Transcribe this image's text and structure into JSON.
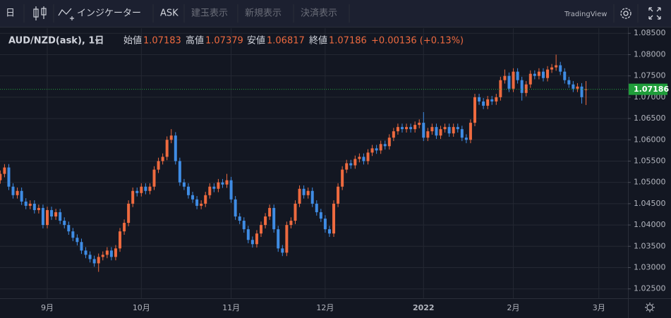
{
  "toolbar": {
    "items": [
      "日",
      "インジケーター",
      "ASK",
      "建玉表示",
      "新規表示",
      "決済表示"
    ],
    "brand": "TradingView"
  },
  "chart_data": {
    "type": "candlestick",
    "symbol": "AUD/NZD(ask), 1日",
    "ohlc_labels": [
      "始値",
      "高値",
      "安値",
      "終値"
    ],
    "change": "+0.00136 (+0.13%)",
    "up_color": "#ee6a3f",
    "down_color": "#3f8ce4",
    "grid": true,
    "categories": [
      null,
      null,
      null,
      null,
      null,
      null,
      null,
      null,
      null,
      null,
      null,
      "9月",
      null,
      null,
      null,
      null,
      null,
      null,
      null,
      null,
      null,
      null,
      null,
      null,
      null,
      null,
      null,
      null,
      null,
      null,
      null,
      null,
      null,
      "10月",
      null,
      null,
      null,
      null,
      null,
      null,
      null,
      null,
      null,
      null,
      null,
      null,
      null,
      null,
      null,
      null,
      null,
      null,
      null,
      null,
      "11月",
      null,
      null,
      null,
      null,
      null,
      null,
      null,
      null,
      null,
      null,
      null,
      null,
      null,
      null,
      null,
      null,
      null,
      null,
      null,
      null,
      null,
      "12月",
      null,
      null,
      null,
      null,
      null,
      null,
      null,
      null,
      null,
      null,
      null,
      null,
      null,
      null,
      null,
      null,
      null,
      null,
      null,
      null,
      null,
      null,
      "2022",
      null,
      null,
      null,
      null,
      null,
      null,
      null,
      null,
      null,
      null,
      null,
      null,
      null,
      null,
      null,
      null,
      null,
      null,
      null,
      null,
      "2月",
      null,
      null,
      null,
      null,
      null,
      null,
      null,
      null,
      null,
      null,
      null,
      null,
      null,
      null,
      null,
      null,
      null,
      null,
      null,
      "3月"
    ],
    "open": [
      1.0505,
      1.052,
      1.0535,
      1.049,
      1.047,
      1.048,
      1.0455,
      1.0445,
      1.045,
      1.0435,
      1.044,
      1.04,
      1.0435,
      1.042,
      1.043,
      1.041,
      1.04,
      1.0385,
      1.037,
      1.036,
      1.034,
      1.033,
      1.032,
      1.031,
      1.0325,
      1.033,
      1.034,
      1.0325,
      1.0345,
      1.0385,
      1.0405,
      1.045,
      1.048,
      1.0475,
      1.049,
      1.048,
      1.049,
      1.053,
      1.055,
      1.056,
      1.06,
      1.061,
      1.055,
      1.05,
      1.049,
      1.047,
      1.046,
      1.0445,
      1.045,
      1.047,
      1.049,
      1.0485,
      1.05,
      1.0495,
      1.0505,
      1.046,
      1.042,
      1.041,
      1.039,
      1.0365,
      1.0355,
      1.038,
      1.04,
      1.042,
      1.044,
      1.039,
      1.0345,
      1.0335,
      1.04,
      1.041,
      1.045,
      1.0485,
      1.047,
      1.048,
      1.045,
      1.043,
      1.0415,
      1.039,
      1.038,
      1.045,
      1.049,
      1.053,
      1.0545,
      1.054,
      1.0555,
      1.056,
      1.055,
      1.057,
      1.058,
      1.0575,
      1.059,
      1.0585,
      1.0605,
      1.062,
      1.063,
      1.0625,
      1.063,
      1.0625,
      1.0635,
      1.064,
      1.0605,
      1.062,
      1.063,
      1.061,
      1.0625,
      1.063,
      1.0615,
      1.063,
      1.0625,
      1.0605,
      1.06,
      1.064,
      1.07,
      1.069,
      1.068,
      1.0695,
      1.069,
      1.07,
      1.074,
      1.075,
      1.072,
      1.076,
      1.074,
      1.071,
      1.073,
      1.0755,
      1.075,
      1.076,
      1.0745,
      1.0765,
      1.077,
      1.0775,
      1.076,
      1.074,
      1.073,
      1.072,
      1.0725,
      1.07183,
      null,
      null,
      null
    ],
    "high": [
      1.0528,
      1.0543,
      1.0543,
      1.0498,
      1.0488,
      1.0488,
      1.0463,
      1.0458,
      1.0458,
      1.0448,
      1.0448,
      1.0443,
      1.0443,
      1.0438,
      1.0438,
      1.0418,
      1.0408,
      1.0393,
      1.0378,
      1.0368,
      1.0348,
      1.0338,
      1.0328,
      1.0333,
      1.0338,
      1.0348,
      1.0348,
      1.0353,
      1.0393,
      1.0413,
      1.0458,
      1.0488,
      1.0488,
      1.0498,
      1.0498,
      1.0498,
      1.0538,
      1.0558,
      1.0568,
      1.0608,
      1.0625,
      1.0618,
      1.0558,
      1.0508,
      1.0498,
      1.0478,
      1.0468,
      1.0458,
      1.0478,
      1.0498,
      1.0498,
      1.0508,
      1.0508,
      1.052,
      1.0513,
      1.0468,
      1.0428,
      1.0418,
      1.0398,
      1.0373,
      1.0388,
      1.0408,
      1.0428,
      1.0448,
      1.0448,
      1.0398,
      1.0353,
      1.0408,
      1.0418,
      1.0458,
      1.0493,
      1.0493,
      1.0488,
      1.0488,
      1.0458,
      1.0438,
      1.0423,
      1.0398,
      1.0458,
      1.0498,
      1.0538,
      1.0553,
      1.0553,
      1.0563,
      1.0568,
      1.0568,
      1.0578,
      1.0588,
      1.0588,
      1.0598,
      1.0598,
      1.0613,
      1.0628,
      1.0638,
      1.0638,
      1.0638,
      1.0638,
      1.0643,
      1.0648,
      1.0665,
      1.0628,
      1.0638,
      1.0638,
      1.0633,
      1.0638,
      1.0638,
      1.0638,
      1.0638,
      1.0633,
      1.0613,
      1.0648,
      1.0708,
      1.0708,
      1.0698,
      1.0703,
      1.0703,
      1.0708,
      1.0748,
      1.0765,
      1.0758,
      1.0768,
      1.0768,
      1.0748,
      1.0738,
      1.0763,
      1.0763,
      1.0768,
      1.0768,
      1.0773,
      1.0778,
      1.08,
      1.0783,
      1.0768,
      1.0748,
      1.0738,
      1.0733,
      1.0733,
      1.07379,
      null,
      null,
      null
    ],
    "low": [
      1.0497,
      1.0512,
      1.0482,
      1.0462,
      1.0462,
      1.0447,
      1.0437,
      1.0437,
      1.0427,
      1.0427,
      1.0392,
      1.0392,
      1.0412,
      1.0412,
      1.0402,
      1.0392,
      1.0377,
      1.0362,
      1.0352,
      1.0332,
      1.0322,
      1.0312,
      1.0302,
      1.029,
      1.0317,
      1.0322,
      1.0317,
      1.0317,
      1.0337,
      1.0377,
      1.0397,
      1.0442,
      1.0467,
      1.0467,
      1.0472,
      1.0472,
      1.0482,
      1.0522,
      1.0542,
      1.0552,
      1.0592,
      1.0542,
      1.0492,
      1.0482,
      1.0462,
      1.0452,
      1.0437,
      1.0437,
      1.0442,
      1.0462,
      1.0477,
      1.0477,
      1.0487,
      1.0487,
      1.0452,
      1.0412,
      1.0402,
      1.0382,
      1.0357,
      1.0347,
      1.0347,
      1.0372,
      1.0392,
      1.0412,
      1.0382,
      1.0337,
      1.0327,
      1.0327,
      1.0392,
      1.0402,
      1.0442,
      1.0462,
      1.0462,
      1.0442,
      1.0422,
      1.0407,
      1.0382,
      1.0372,
      1.0372,
      1.0442,
      1.0482,
      1.0522,
      1.0532,
      1.0532,
      1.0547,
      1.0542,
      1.0542,
      1.0562,
      1.0567,
      1.0567,
      1.0577,
      1.0577,
      1.0597,
      1.0612,
      1.0617,
      1.0617,
      1.0617,
      1.0617,
      1.0627,
      1.0597,
      1.0597,
      1.0612,
      1.0602,
      1.0602,
      1.0617,
      1.0607,
      1.0607,
      1.0617,
      1.0597,
      1.0592,
      1.0592,
      1.0632,
      1.0682,
      1.0672,
      1.0672,
      1.0682,
      1.0682,
      1.0692,
      1.0732,
      1.0712,
      1.0712,
      1.0732,
      1.0692,
      1.0702,
      1.0722,
      1.0742,
      1.0742,
      1.0737,
      1.0737,
      1.0757,
      1.0762,
      1.0752,
      1.0732,
      1.0722,
      1.0712,
      1.0712,
      1.0685,
      1.06817,
      null,
      null,
      null
    ],
    "close": [
      1.052,
      1.0535,
      1.049,
      1.047,
      1.048,
      1.0455,
      1.0445,
      1.045,
      1.0435,
      1.044,
      1.04,
      1.0435,
      1.042,
      1.043,
      1.041,
      1.04,
      1.0385,
      1.037,
      1.036,
      1.034,
      1.033,
      1.032,
      1.031,
      1.0325,
      1.033,
      1.034,
      1.0325,
      1.0345,
      1.0385,
      1.0405,
      1.045,
      1.048,
      1.0475,
      1.049,
      1.048,
      1.049,
      1.053,
      1.055,
      1.056,
      1.06,
      1.061,
      1.055,
      1.05,
      1.049,
      1.047,
      1.046,
      1.0445,
      1.045,
      1.047,
      1.049,
      1.0485,
      1.05,
      1.0495,
      1.0505,
      1.046,
      1.042,
      1.041,
      1.039,
      1.0365,
      1.0355,
      1.038,
      1.04,
      1.042,
      1.044,
      1.039,
      1.0345,
      1.0335,
      1.04,
      1.041,
      1.045,
      1.0485,
      1.047,
      1.048,
      1.045,
      1.043,
      1.0415,
      1.039,
      1.038,
      1.045,
      1.049,
      1.053,
      1.0545,
      1.054,
      1.0555,
      1.056,
      1.055,
      1.057,
      1.058,
      1.0575,
      1.059,
      1.0585,
      1.0605,
      1.062,
      1.063,
      1.0625,
      1.063,
      1.0625,
      1.0635,
      1.064,
      1.0605,
      1.062,
      1.063,
      1.061,
      1.0625,
      1.063,
      1.0615,
      1.063,
      1.0625,
      1.0605,
      1.06,
      1.064,
      1.07,
      1.069,
      1.068,
      1.0695,
      1.069,
      1.07,
      1.074,
      1.075,
      1.072,
      1.076,
      1.074,
      1.071,
      1.073,
      1.0755,
      1.075,
      1.076,
      1.0745,
      1.0765,
      1.077,
      1.0775,
      1.076,
      1.074,
      1.073,
      1.072,
      1.0725,
      1.07,
      1.07186,
      null,
      null,
      null
    ],
    "ylim": [
      1.0228,
      1.0862
    ],
    "yticks": [
      {
        "value": 1.025,
        "label": "1.02500"
      },
      {
        "value": 1.03,
        "label": "1.03000"
      },
      {
        "value": 1.035,
        "label": "1.03500"
      },
      {
        "value": 1.04,
        "label": "1.04000"
      },
      {
        "value": 1.045,
        "label": "1.04500"
      },
      {
        "value": 1.05,
        "label": "1.05000"
      },
      {
        "value": 1.055,
        "label": "1.05500"
      },
      {
        "value": 1.06,
        "label": "1.06000"
      },
      {
        "value": 1.065,
        "label": "1.06500"
      },
      {
        "value": 1.07,
        "label": "1.07000"
      },
      {
        "value": 1.075,
        "label": "1.07500"
      },
      {
        "value": 1.08,
        "label": "1.08000"
      },
      {
        "value": 1.085,
        "label": "1.08500"
      }
    ]
  }
}
